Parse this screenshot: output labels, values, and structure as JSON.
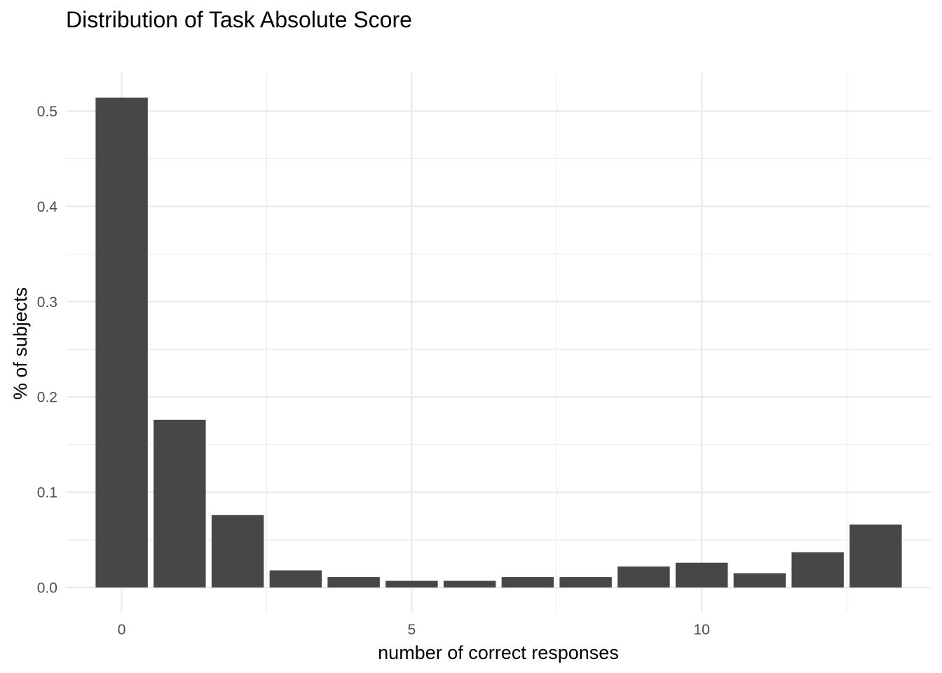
{
  "chart_data": {
    "type": "bar",
    "title": "Distribution of Task Absolute Score",
    "xlabel": "number of correct responses",
    "ylabel": "% of subjects",
    "x": [
      0,
      1,
      2,
      3,
      4,
      5,
      6,
      7,
      8,
      9,
      10,
      11,
      12,
      13
    ],
    "values": [
      0.514,
      0.176,
      0.076,
      0.018,
      0.011,
      0.007,
      0.007,
      0.011,
      0.011,
      0.022,
      0.026,
      0.015,
      0.037,
      0.066
    ],
    "xlim": [
      -0.95,
      13.95
    ],
    "ylim": [
      -0.0257,
      0.54
    ],
    "x_ticks": [
      0,
      5,
      10
    ],
    "x_tick_labels": [
      "0",
      "5",
      "10"
    ],
    "y_ticks": [
      0.0,
      0.1,
      0.2,
      0.3,
      0.4,
      0.5
    ],
    "y_tick_labels": [
      "0.0",
      "0.1",
      "0.2",
      "0.3",
      "0.4",
      "0.5"
    ],
    "bar_color": "#474747",
    "grid": true,
    "legend": "none"
  }
}
